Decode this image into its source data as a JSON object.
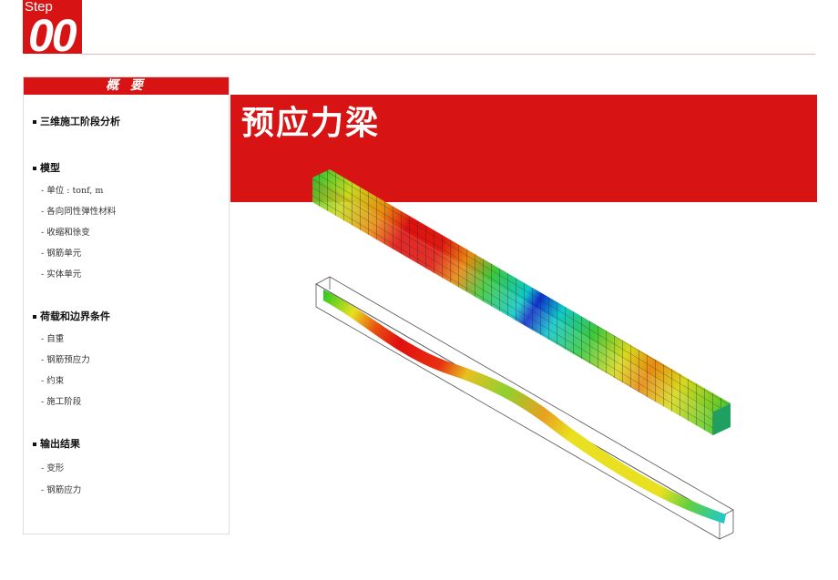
{
  "step": {
    "label": "Step",
    "number": "00"
  },
  "sidebar": {
    "title": "概 要",
    "sections": [
      {
        "title": "三维施工阶段分析",
        "items": []
      },
      {
        "title": "模型",
        "items": [
          "- 单位 : tonf, m",
          "- 各向同性弹性材料",
          "- 收缩和徐变",
          "- 钢筋单元",
          "- 实体单元"
        ]
      },
      {
        "title": "荷载和边界条件",
        "items": [
          "- 自重",
          "- 钢筋预应力",
          "- 约束",
          "- 施工阶段"
        ]
      },
      {
        "title": "输出结果",
        "items": [
          "- 变形",
          "- 钢筋应力"
        ]
      }
    ]
  },
  "banner": {
    "title": "预应力梁"
  },
  "colors": {
    "accent": "#d71313"
  }
}
